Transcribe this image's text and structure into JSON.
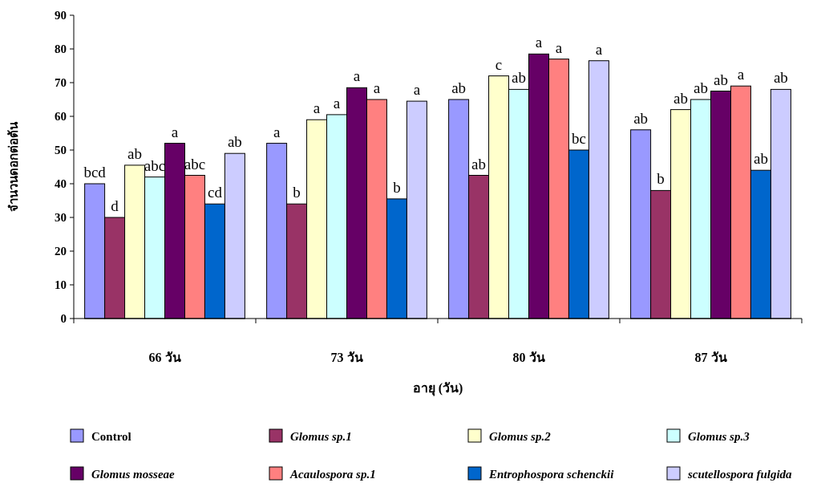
{
  "chart_data": {
    "type": "bar",
    "xlabel": "อายุ (วัน)",
    "ylabel": "จำนวนดอกต่อต้น",
    "categories": [
      "66 วัน",
      "73 วัน",
      "80 วัน",
      "87 วัน"
    ],
    "ylim": [
      0,
      90
    ],
    "yticks": [
      0,
      10,
      20,
      30,
      40,
      50,
      60,
      70,
      80,
      90
    ],
    "legend": "bottom",
    "series": [
      {
        "name": "Control",
        "color": "#9999ff",
        "values": [
          40,
          52,
          65,
          56
        ],
        "value_labels": [
          "bcd",
          "a",
          "ab",
          "ab"
        ]
      },
      {
        "name": "Glomus sp.1",
        "color": "#993366",
        "values": [
          30,
          34,
          42.5,
          38
        ],
        "value_labels": [
          "d",
          "b",
          "ab",
          "b"
        ]
      },
      {
        "name": "Glomus sp.2",
        "color": "#ffffcc",
        "values": [
          45.5,
          59,
          72,
          62
        ],
        "value_labels": [
          "ab",
          "a",
          "c",
          "ab"
        ]
      },
      {
        "name": "Glomus sp.3",
        "color": "#ccffff",
        "values": [
          42,
          60.5,
          68,
          65
        ],
        "value_labels": [
          "abc",
          "a",
          "ab",
          "ab"
        ]
      },
      {
        "name": "Glomus mosseae",
        "color": "#660066",
        "values": [
          52,
          68.5,
          78.5,
          67.5
        ],
        "value_labels": [
          "a",
          "a",
          "a",
          "ab"
        ]
      },
      {
        "name": "Acaulospora sp.1",
        "color": "#ff8080",
        "values": [
          42.5,
          65,
          77,
          69
        ],
        "value_labels": [
          "abc",
          "a",
          "a",
          "a"
        ]
      },
      {
        "name": "Entrophospora schenckii",
        "color": "#0066cc",
        "values": [
          34,
          35.5,
          50,
          44
        ],
        "value_labels": [
          "cd",
          "b",
          "bc",
          "ab"
        ]
      },
      {
        "name": "scutellospora fulgida",
        "color": "#ccccff",
        "values": [
          49,
          64.5,
          76.5,
          68
        ],
        "value_labels": [
          "ab",
          "a",
          "a",
          "ab"
        ]
      }
    ]
  }
}
